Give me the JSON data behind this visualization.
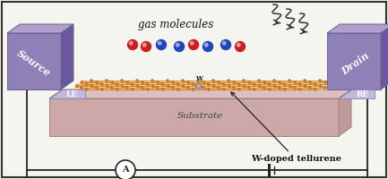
{
  "bg_color": "#f5f5f0",
  "border_color": "#333333",
  "substrate_top_color": "#ddbfbf",
  "substrate_front_color": "#cca8a8",
  "substrate_side_color": "#c09898",
  "monolayer_fill": "#f2c88a",
  "lattice_color": "#c87820",
  "electrode_front": "#9080b8",
  "electrode_top": "#b0a0cc",
  "electrode_side": "#6858a0",
  "le_re_color": "#c0b8e0",
  "gas_text": "gas molecules",
  "source_text": "Source",
  "drain_text": "Drain",
  "le_text": "LE",
  "re_text": "RE",
  "substrate_text": "Substrate",
  "w_label": "W",
  "w_doped_text": "W-doped tellurene",
  "ammeter_label": "A",
  "red_atom": "#cc2020",
  "blue_atom": "#2244bb",
  "circuit_color": "#222222",
  "arrow_color": "#222222",
  "squiggle_color": "#333333"
}
